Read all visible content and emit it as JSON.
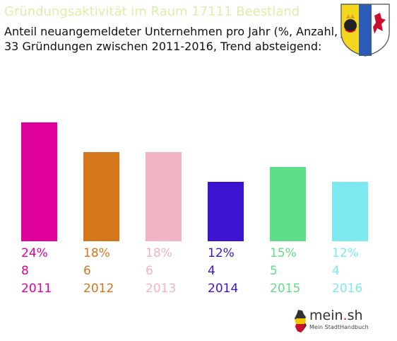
{
  "chart_data": {
    "type": "bar",
    "title": "Gründungsaktivität im Raum 17111 Beestland",
    "subtitle_line1": "Anteil neuangemeldeter Unternehmen pro Jahr (%, Anzahl, Jahr)",
    "subtitle_line2": "33 Gründungen zwischen 2011-2016, Trend absteigend:",
    "categories": [
      "2011",
      "2012",
      "2013",
      "2014",
      "2015",
      "2016"
    ],
    "values": [
      8,
      6,
      6,
      4,
      5,
      4
    ],
    "percent_labels": [
      "24%",
      "18%",
      "18%",
      "12%",
      "15%",
      "12%"
    ],
    "colors": [
      "#e0009c",
      "#d4761c",
      "#f1b4c4",
      "#3c14d0",
      "#5ede88",
      "#7de9ef"
    ]
  },
  "logo": {
    "name_prefix": "mein",
    "name_dot": ".",
    "name_suffix": "sh",
    "tagline": "Mein StadtHandbuch"
  }
}
